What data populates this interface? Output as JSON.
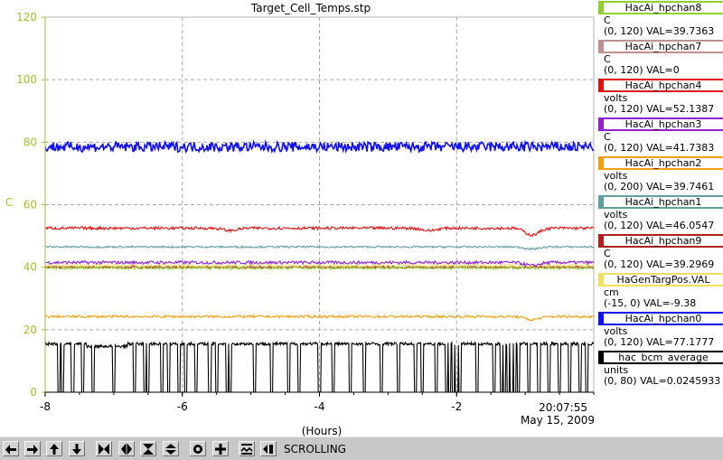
{
  "window": {
    "title": "Target_Cell_Temps.stp"
  },
  "plot": {
    "ylabel": "C",
    "xlabel": "(Hours)",
    "time_label": "20:07:55",
    "date_label": "May 15, 2009",
    "axis_color": "#a0c030"
  },
  "chart_data": {
    "type": "line",
    "title": "Target_Cell_Temps.stp",
    "xlabel": "(Hours)",
    "ylabel": "C",
    "xlim": [
      -8,
      0
    ],
    "ylim": [
      0,
      120
    ],
    "x_ticks": [
      "-8",
      "-6",
      "-4",
      "-2"
    ],
    "y_ticks": [
      "0",
      "20",
      "40",
      "60",
      "80",
      "100",
      "120"
    ],
    "grid": true,
    "legend": "right",
    "series": [
      {
        "name": "HacAi_hpchan8",
        "color": "#90d030",
        "level": 39.7
      },
      {
        "name": "HacAi_hpchan7",
        "color": "#c09090",
        "level": 0
      },
      {
        "name": "HacAi_hpchan4",
        "color": "#e01010",
        "level": 52.5
      },
      {
        "name": "HacAi_hpchan3",
        "color": "#9020d0",
        "level": 41.5
      },
      {
        "name": "HacAi_hpchan2",
        "color": "#f0a010",
        "level": 24.2
      },
      {
        "name": "HacAi_hpchan1",
        "color": "#60a0a0",
        "level": 46.5
      },
      {
        "name": "HacAi_hpchan9",
        "color": "#b02020",
        "level": 40.0
      },
      {
        "name": "HaGenTargPos.VAL",
        "color": "#f0e060",
        "level": 40.5
      },
      {
        "name": "HacAi_hpchan0",
        "color": "#1010f0",
        "level": 78.5
      },
      {
        "name": "hac_bcm_average",
        "color": "#000000",
        "level": 15.5
      }
    ]
  },
  "legend": {
    "items": [
      {
        "name": "HacAi_hpchan8",
        "color": "#90d030",
        "unit": "C",
        "range": "(0, 120) VAL=39.7363"
      },
      {
        "name": "HacAi_hpchan7",
        "color": "#c09090",
        "unit": "C",
        "range": "(0, 120) VAL=0"
      },
      {
        "name": "HacAi_hpchan4",
        "color": "#e01010",
        "unit": "volts",
        "range": "(0, 120) VAL=52.1387"
      },
      {
        "name": "HacAi_hpchan3",
        "color": "#9020d0",
        "unit": "C",
        "range": "(0, 120) VAL=41.7383"
      },
      {
        "name": "HacAi_hpchan2",
        "color": "#f0a010",
        "unit": "volts",
        "range": "(0, 200) VAL=39.7461"
      },
      {
        "name": "HacAi_hpchan1",
        "color": "#60a0a0",
        "unit": "volts",
        "range": "(0, 120) VAL=46.0547"
      },
      {
        "name": "HacAi_hpchan9",
        "color": "#b02020",
        "unit": "C",
        "range": "(0, 120) VAL=39.2969"
      },
      {
        "name": "HaGenTargPos.VAL",
        "color": "#f0e060",
        "unit": "cm",
        "range": "(-15, 0) VAL=-9.38"
      },
      {
        "name": "HacAi_hpchan0",
        "color": "#1010f0",
        "unit": "volts",
        "range": "(0, 120) VAL=77.1777"
      },
      {
        "name": "hac_bcm_average",
        "color": "#000000",
        "unit": "units",
        "range": "(0, 80) VAL=0.0245933"
      }
    ]
  },
  "toolbar": {
    "status_label": "SCROLLING",
    "buttons": [
      "arrow-left-icon",
      "arrow-right-icon",
      "arrow-up-icon",
      "arrow-down-icon",
      "zoom-in-horizontal-icon",
      "zoom-out-horizontal-icon",
      "zoom-in-vertical-icon",
      "zoom-out-vertical-icon",
      "circle-icon",
      "plus-icon",
      "autoscale-icon",
      "play-pause-icon"
    ]
  }
}
